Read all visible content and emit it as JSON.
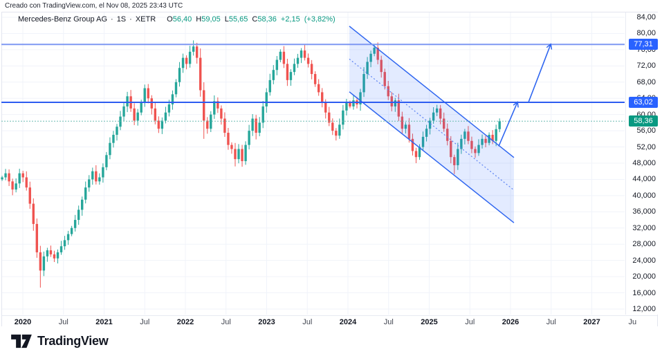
{
  "header": {
    "created_line": "Creado con TradingView.com, el Nov 08, 2025 23:43 UTC",
    "legend": {
      "symbol": "Mercedes-Benz Group AG",
      "sep": "·",
      "interval": "1S",
      "exchange": "XETR",
      "o_label": "O",
      "open": "56,40",
      "h_label": "H",
      "high": "59,05",
      "l_label": "L",
      "low": "55,65",
      "c_label": "C",
      "close": "58,36",
      "change": "+2,15",
      "change_pct": "(+3,82%)"
    }
  },
  "footer": {
    "brand": "TradingView"
  },
  "price_axis": {
    "labels": [
      {
        "value": 84,
        "text": "84,00"
      },
      {
        "value": 80,
        "text": "80,00"
      },
      {
        "value": 76,
        "text": "76,00"
      },
      {
        "value": 72,
        "text": "72,00"
      },
      {
        "value": 68,
        "text": "68,00"
      },
      {
        "value": 64,
        "text": "64,00"
      },
      {
        "value": 60,
        "text": "60,00"
      },
      {
        "value": 56,
        "text": "56,00"
      },
      {
        "value": 52,
        "text": "52,00"
      },
      {
        "value": 48,
        "text": "48,000"
      },
      {
        "value": 44,
        "text": "44,000"
      },
      {
        "value": 40,
        "text": "40,000"
      },
      {
        "value": 36,
        "text": "36,000"
      },
      {
        "value": 32,
        "text": "32,000"
      },
      {
        "value": 28,
        "text": "28,000"
      },
      {
        "value": 24,
        "text": "24,000"
      },
      {
        "value": 20,
        "text": "20,000"
      },
      {
        "value": 16,
        "text": "16,000"
      },
      {
        "value": 12,
        "text": "12,000"
      }
    ]
  },
  "time_axis": {
    "ticks": [
      {
        "label": "2020",
        "year": 2020,
        "major": true
      },
      {
        "label": "Jul",
        "year": 2020.5,
        "major": false
      },
      {
        "label": "2021",
        "year": 2021,
        "major": true
      },
      {
        "label": "Jul",
        "year": 2021.5,
        "major": false
      },
      {
        "label": "2022",
        "year": 2022,
        "major": true
      },
      {
        "label": "Jul",
        "year": 2022.5,
        "major": false
      },
      {
        "label": "2023",
        "year": 2023,
        "major": true
      },
      {
        "label": "Jul",
        "year": 2023.5,
        "major": false
      },
      {
        "label": "2024",
        "year": 2024,
        "major": true
      },
      {
        "label": "Jul",
        "year": 2024.5,
        "major": false
      },
      {
        "label": "2025",
        "year": 2025,
        "major": true
      },
      {
        "label": "Jul",
        "year": 2025.5,
        "major": false
      },
      {
        "label": "2026",
        "year": 2026,
        "major": true
      },
      {
        "label": "Jul",
        "year": 2026.5,
        "major": false
      },
      {
        "label": "2027",
        "year": 2027,
        "major": true
      },
      {
        "label": "Ju",
        "year": 2027.5,
        "major": false
      }
    ]
  },
  "chart_data": {
    "type": "candlestick",
    "title": "Mercedes-Benz Group AG · 1S · XETR (weekly candles)",
    "x_axis": {
      "start_label": "2020",
      "end_label": "2027",
      "tick_interval": "6 months"
    },
    "y_axis": {
      "min": 12,
      "max": 84,
      "tick_step": 4
    },
    "grid": true,
    "last_bar": {
      "open": 56.4,
      "high": 59.05,
      "low": 55.65,
      "close": 58.36,
      "change": 2.15,
      "change_pct": 3.82
    },
    "series": {
      "approximation": "closes sampled ~biweekly from the weekly chart, Dec 2019 - Nov 2025",
      "start_year": 2019.745,
      "step_years": 0.0428,
      "first_open": 44.0,
      "closes": [
        44.5,
        45.5,
        43.5,
        41.5,
        43.0,
        45.5,
        44.5,
        42.0,
        38.0,
        33.0,
        26.0,
        21.5,
        25.0,
        26.5,
        25.5,
        24.5,
        26.0,
        27.5,
        29.0,
        30.5,
        32.0,
        34.0,
        36.5,
        39.0,
        42.0,
        44.0,
        46.0,
        43.5,
        44.5,
        47.0,
        50.0,
        53.0,
        55.0,
        57.0,
        59.5,
        62.0,
        64.5,
        61.5,
        58.5,
        60.5,
        63.0,
        66.5,
        64.0,
        61.5,
        58.5,
        56.5,
        58.5,
        60.5,
        62.5,
        65.0,
        68.0,
        71.5,
        74.0,
        72.5,
        75.5,
        76.8,
        74.0,
        66.0,
        58.5,
        56.5,
        60.0,
        63.3,
        61.5,
        59.0,
        55.5,
        52.5,
        51.5,
        49.0,
        51.5,
        48.5,
        52.5,
        56.0,
        59.0,
        55.5,
        58.0,
        62.0,
        65.5,
        68.5,
        71.0,
        73.5,
        75.5,
        72.5,
        68.5,
        70.5,
        72.5,
        74.0,
        75.8,
        74.0,
        72.5,
        70.0,
        67.5,
        65.5,
        63.0,
        60.5,
        58.0,
        56.0,
        54.8,
        57.5,
        61.0,
        63.0,
        62.0,
        63.5,
        62.5,
        65.5,
        70.0,
        73.0,
        75.0,
        76.5,
        73.5,
        70.5,
        67.0,
        64.5,
        62.0,
        63.5,
        59.5,
        56.5,
        57.5,
        54.0,
        51.0,
        49.5,
        52.0,
        54.5,
        56.5,
        58.5,
        60.5,
        61.5,
        59.0,
        56.5,
        53.5,
        49.5,
        47.5,
        51.5,
        54.0,
        55.8,
        53.5,
        51.5,
        50.5,
        52.5,
        54.0,
        53.0,
        55.0,
        53.5,
        56.4,
        58.36
      ],
      "wick_overrides": {
        "11": {
          "low": 17.3
        },
        "26": {
          "high": 46.9
        },
        "36": {
          "high": 65.6
        },
        "41": {
          "high": 67.4
        },
        "55": {
          "high": 78.3
        },
        "58": {
          "low": 54.0
        },
        "67": {
          "low": 47.2
        },
        "86": {
          "high": 76.4
        },
        "96": {
          "low": 53.6
        },
        "107": {
          "high": 77.35
        },
        "119": {
          "low": 48.0
        },
        "130": {
          "low": 45.3
        },
        "143": {
          "high": 59.05,
          "low": 55.65
        }
      }
    },
    "levels": [
      {
        "price": 77.31,
        "label": "77,31",
        "style": "solid",
        "line_color": "#7e97f2",
        "badge_color": "#2962ff",
        "role": "resistance"
      },
      {
        "price": 63.02,
        "label": "63,02",
        "style": "solid",
        "line_color": "#2d5cf0",
        "badge_color": "#2962ff",
        "role": "resistance"
      },
      {
        "price": 58.36,
        "label": "58,36",
        "style": "dashed",
        "line_color": "#6bbcb1",
        "badge_color": "#089981",
        "role": "last-price"
      }
    ],
    "drawings": {
      "channel": {
        "type": "descending-parallel-channel",
        "x1_year": 2024.017,
        "x2_year": 2026.042,
        "upper_p1": 81.8,
        "upper_p2": 49.4,
        "lower_p1": 65.6,
        "lower_p2": 33.3,
        "fill": "rgba(41,98,255,0.13)",
        "stroke": "#2f66f0",
        "mid_line": "dashed"
      },
      "arrows": [
        {
          "x1_year": 2025.855,
          "p1": 52.2,
          "x2_year": 2026.085,
          "p2": 63.02
        },
        {
          "x1_year": 2026.221,
          "p1": 63.02,
          "x2_year": 2026.494,
          "p2": 77.31
        }
      ],
      "arrow_color": "#2f66f0"
    },
    "colors": {
      "up": "#26a69a",
      "down": "#ef5350",
      "grid": "#f0f3fa"
    }
  }
}
